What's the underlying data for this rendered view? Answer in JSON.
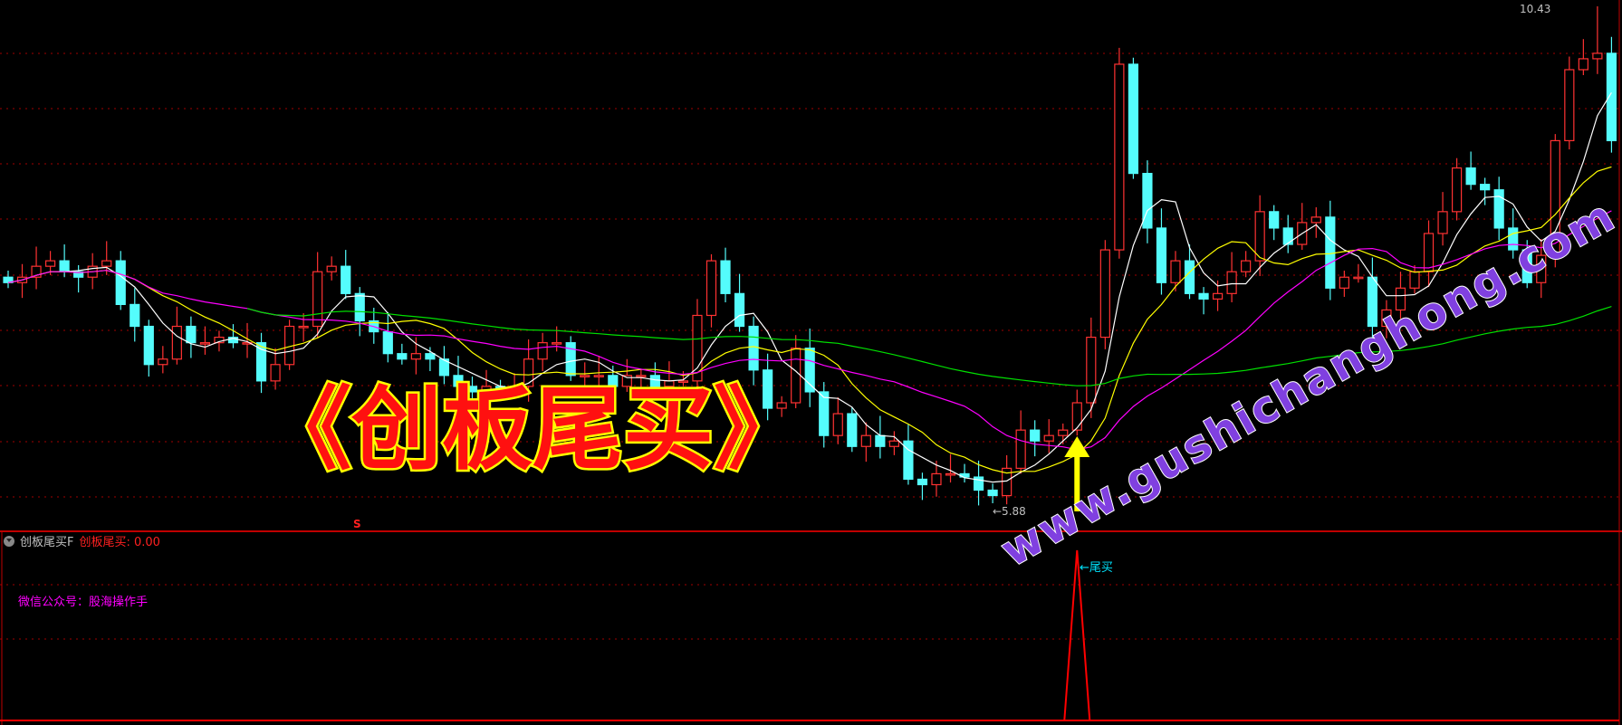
{
  "indicator": {
    "name": "创板尾买F",
    "value_label": "创板尾买: 0.00",
    "signal_label": "←尾买",
    "wechat": "微信公众号：股海操作手",
    "marker": "S"
  },
  "overlay_title": "《创板尾买》",
  "watermark": "www.gushichanghong.com",
  "price_labels": {
    "high": "10.43",
    "low": "←5.88"
  },
  "colors": {
    "up": "#ff3232",
    "down": "#54fcfc",
    "ma5": "#ffffff",
    "ma10": "#ffff00",
    "ma20": "#ff00ff",
    "ma60": "#00e000",
    "grid": "#a00000",
    "arrow": "#ffff00",
    "signal": "#ff0000"
  },
  "chart_data": {
    "type": "candlestick",
    "ylim": [
      5.88,
      10.43
    ],
    "period_high": 10.43,
    "period_low": 5.88,
    "moving_averages": [
      5,
      10,
      20,
      60
    ],
    "closes": [
      7.9,
      7.95,
      8.05,
      8.1,
      8.0,
      7.95,
      8.05,
      8.1,
      7.7,
      7.5,
      7.15,
      7.2,
      7.5,
      7.35,
      7.35,
      7.4,
      7.35,
      7.35,
      7.0,
      7.15,
      7.5,
      7.5,
      8.0,
      8.05,
      7.8,
      7.55,
      7.45,
      7.25,
      7.2,
      7.25,
      7.2,
      7.05,
      6.95,
      6.9,
      6.95,
      6.9,
      6.95,
      7.2,
      7.35,
      7.35,
      7.05,
      7.05,
      7.05,
      6.95,
      7.05,
      7.05,
      6.95,
      7.0,
      7.0,
      7.6,
      8.1,
      7.8,
      7.5,
      7.1,
      6.75,
      6.8,
      7.3,
      6.9,
      6.5,
      6.7,
      6.4,
      6.5,
      6.4,
      6.45,
      6.1,
      6.05,
      6.15,
      6.15,
      6.12,
      6.0,
      5.95,
      6.2,
      6.55,
      6.45,
      6.5,
      6.55,
      6.8,
      7.4,
      8.2,
      9.9,
      8.9,
      8.4,
      7.9,
      8.1,
      7.8,
      7.75,
      7.8,
      8.0,
      8.1,
      8.55,
      8.4,
      8.25,
      8.45,
      8.5,
      7.85,
      7.95,
      7.95,
      7.5,
      7.65,
      7.85,
      8.0,
      8.35,
      8.55,
      8.95,
      8.8,
      8.75,
      8.4,
      8.2,
      7.9,
      8.15,
      9.2,
      9.85,
      9.95,
      10.0,
      9.2
    ],
    "signal_index": 76
  }
}
